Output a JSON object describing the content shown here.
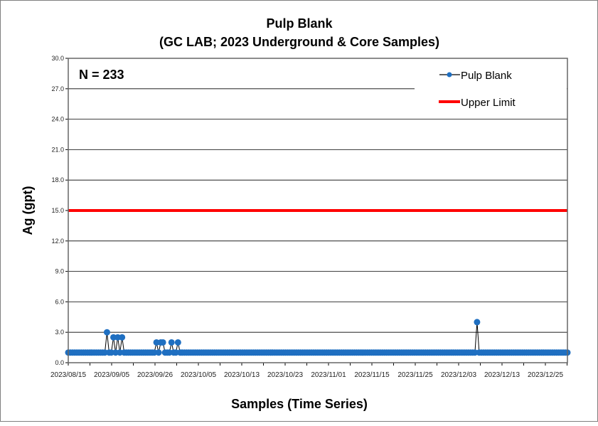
{
  "chart_data": {
    "type": "line",
    "title": "Pulp Blank",
    "subtitle": "(GC LAB; 2023 Underground & Core Samples)",
    "xlabel": "Samples (Time Series)",
    "ylabel": "Ag (gpt)",
    "annotation": "N = 233",
    "ylim": [
      0,
      30
    ],
    "yticks": [
      "0.0",
      "3.0",
      "6.0",
      "9.0",
      "12.0",
      "15.0",
      "18.0",
      "21.0",
      "24.0",
      "27.0",
      "30.0"
    ],
    "xtick_labels": [
      "2023/08/15",
      "2023/09/05",
      "2023/09/26",
      "2023/10/05",
      "2023/10/13",
      "2023/10/23",
      "2023/11/01",
      "2023/11/15",
      "2023/11/25",
      "2023/12/03",
      "2023/12/13",
      "2023/12/25"
    ],
    "grid": true,
    "legend_position": "top-right",
    "series": [
      {
        "name": "Pulp Blank",
        "color": "#1f6fc1",
        "n": 233,
        "baseline": 1.0,
        "spikes": [
          {
            "index": 18,
            "value": 3.0
          },
          {
            "index": 21,
            "value": 2.5
          },
          {
            "index": 23,
            "value": 2.5
          },
          {
            "index": 25,
            "value": 2.5
          },
          {
            "index": 41,
            "value": 2.0
          },
          {
            "index": 43,
            "value": 2.0
          },
          {
            "index": 44,
            "value": 2.0
          },
          {
            "index": 48,
            "value": 2.0
          },
          {
            "index": 51,
            "value": 2.0
          },
          {
            "index": 190,
            "value": 4.0
          }
        ]
      },
      {
        "name": "Upper Limit",
        "color": "#ff0000",
        "value": 15.0
      }
    ]
  }
}
